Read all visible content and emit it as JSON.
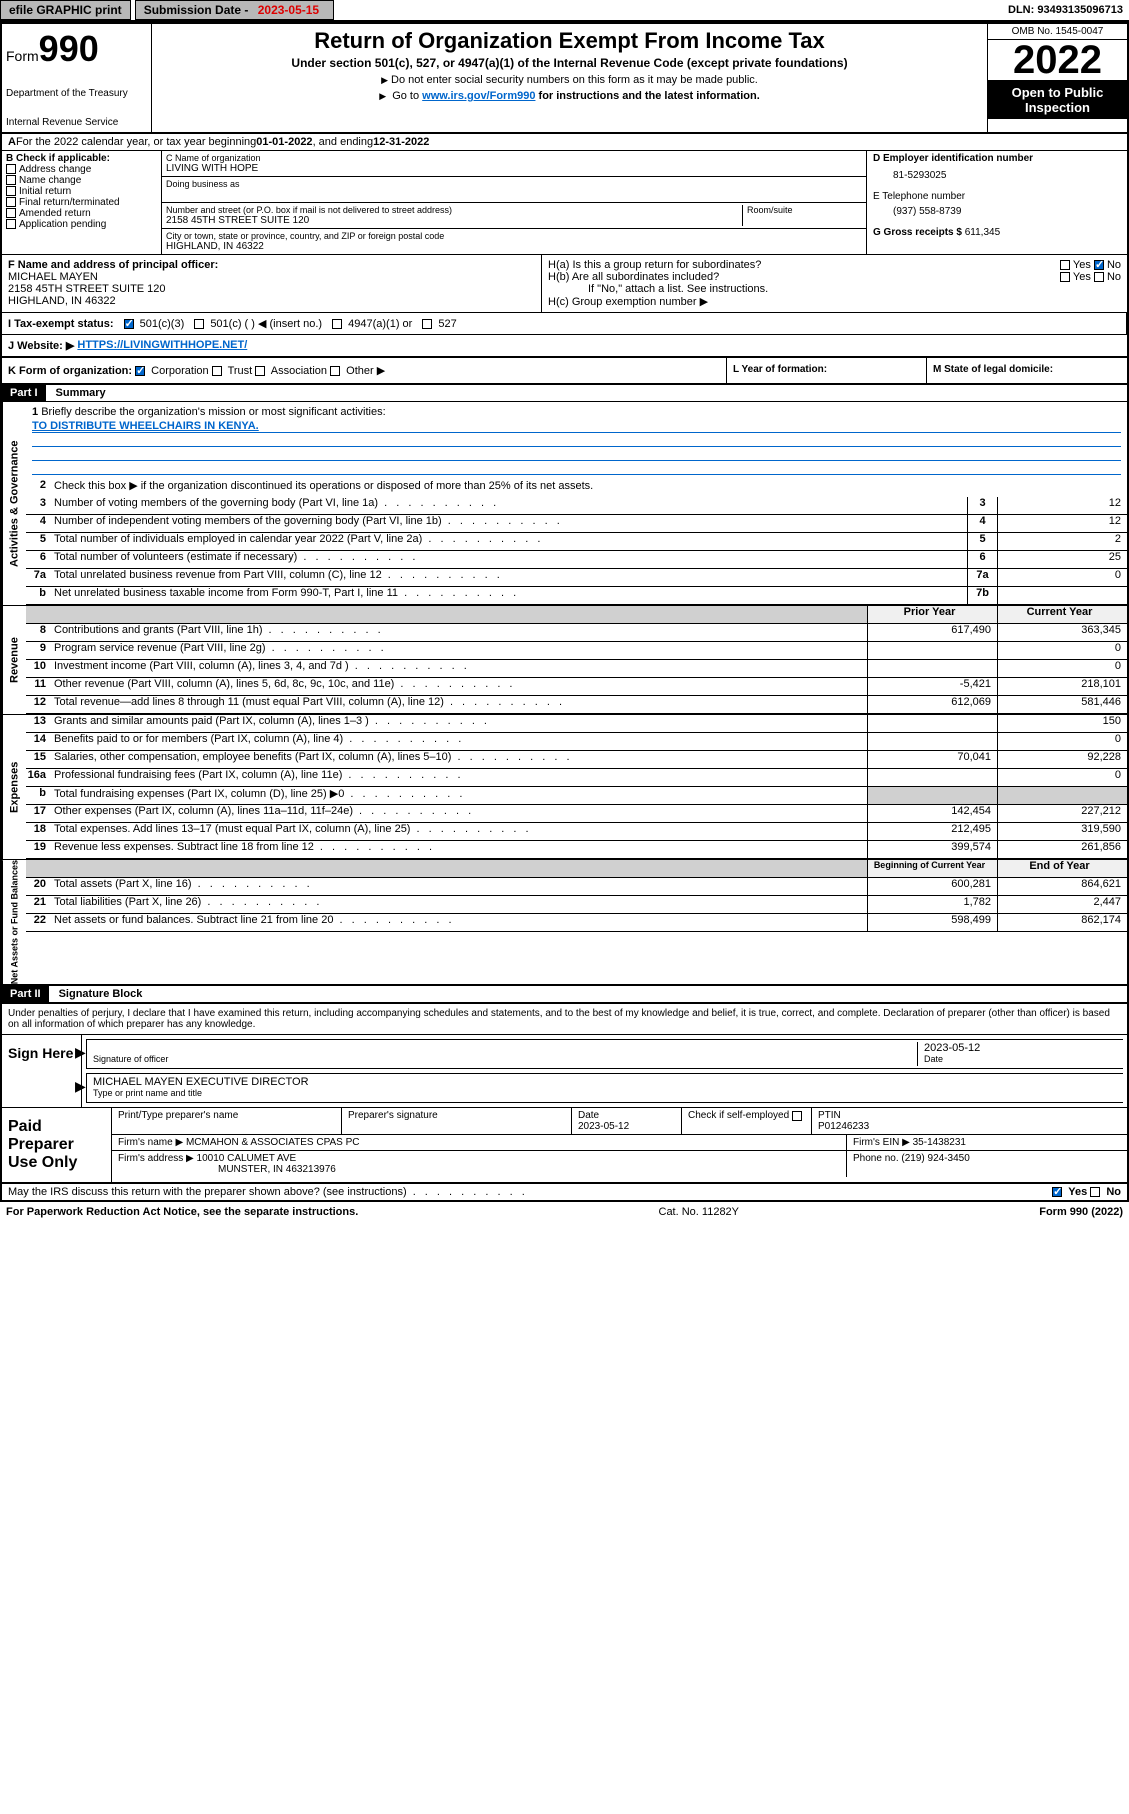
{
  "topbar": {
    "efile": "efile GRAPHIC print",
    "subdate_label": "Submission Date - ",
    "subdate": "2023-05-15",
    "dln_label": "DLN: ",
    "dln": "93493135096713"
  },
  "header": {
    "form": "Form",
    "formnum": "990",
    "dept": "Department of the Treasury",
    "irs": "Internal Revenue Service",
    "title": "Return of Organization Exempt From Income Tax",
    "sub": "Under section 501(c), 527, or 4947(a)(1) of the Internal Revenue Code (except private foundations)",
    "note1": "Do not enter social security numbers on this form as it may be made public.",
    "note2_pre": "Go to ",
    "note2_link": "www.irs.gov/Form990",
    "note2_post": " for instructions and the latest information.",
    "omb": "OMB No. 1545-0047",
    "year": "2022",
    "open1": "Open to Public",
    "open2": "Inspection"
  },
  "lineA": {
    "pre": "For the 2022 calendar year, or tax year beginning ",
    "begin": "01-01-2022",
    "mid": " , and ending ",
    "end": "12-31-2022"
  },
  "sectionB": {
    "label": "B Check if applicable:",
    "items": [
      "Address change",
      "Name change",
      "Initial return",
      "Final return/terminated",
      "Amended return",
      "Application pending"
    ]
  },
  "sectionC": {
    "name_label": "C Name of organization",
    "name": "LIVING WITH HOPE",
    "dba_label": "Doing business as",
    "street_label": "Number and street (or P.O. box if mail is not delivered to street address)",
    "room_label": "Room/suite",
    "street": "2158 45TH STREET SUITE 120",
    "city_label": "City or town, state or province, country, and ZIP or foreign postal code",
    "city": "HIGHLAND, IN  46322"
  },
  "sectionD": {
    "label": "D Employer identification number",
    "ein": "81-5293025",
    "phone_label": "E Telephone number",
    "phone": "(937) 558-8739",
    "gross_label": "G Gross receipts $ ",
    "gross": "611,345"
  },
  "officer": {
    "label": "F Name and address of principal officer:",
    "name": "MICHAEL MAYEN",
    "addr1": "2158 45TH STREET SUITE 120",
    "addr2": "HIGHLAND, IN  46322"
  },
  "H": {
    "a": "H(a)  Is this a group return for subordinates?",
    "b": "H(b)  Are all subordinates included?",
    "note": "If \"No,\" attach a list. See instructions.",
    "c": "H(c)  Group exemption number ▶",
    "yes": "Yes",
    "no": "No"
  },
  "taxStatus": {
    "label": "I  Tax-exempt status:",
    "opt1": "501(c)(3)",
    "opt2": "501(c) (  ) ◀ (insert no.)",
    "opt3": "4947(a)(1) or",
    "opt4": "527"
  },
  "website": {
    "label": "J  Website: ▶",
    "url": "HTTPS://LIVINGWITHHOPE.NET/"
  },
  "K": {
    "label": "K Form of organization:",
    "opts": [
      "Corporation",
      "Trust",
      "Association",
      "Other ▶"
    ]
  },
  "L": "L Year of formation:",
  "M": "M State of legal domicile:",
  "part1": {
    "header": "Part I",
    "title": "Summary",
    "q1": "Briefly describe the organization's mission or most significant activities:",
    "mission": "TO DISTRIBUTE WHEELCHAIRS IN KENYA.",
    "q2": "Check this box ▶          if the organization discontinued its operations or disposed of more than 25% of its net assets.",
    "lines": [
      {
        "n": "3",
        "d": "Number of voting members of the governing body (Part VI, line 1a)",
        "box": "3",
        "v2": "12"
      },
      {
        "n": "4",
        "d": "Number of independent voting members of the governing body (Part VI, line 1b)",
        "box": "4",
        "v2": "12"
      },
      {
        "n": "5",
        "d": "Total number of individuals employed in calendar year 2022 (Part V, line 2a)",
        "box": "5",
        "v2": "2"
      },
      {
        "n": "6",
        "d": "Total number of volunteers (estimate if necessary)",
        "box": "6",
        "v2": "25"
      },
      {
        "n": "7a",
        "d": "Total unrelated business revenue from Part VIII, column (C), line 12",
        "box": "7a",
        "v2": "0"
      },
      {
        "n": "b",
        "d": "Net unrelated business taxable income from Form 990-T, Part I, line 11",
        "box": "7b",
        "v2": ""
      }
    ],
    "headers": {
      "prior": "Prior Year",
      "current": "Current Year"
    },
    "revenue": [
      {
        "n": "8",
        "d": "Contributions and grants (Part VIII, line 1h)",
        "v1": "617,490",
        "v2": "363,345"
      },
      {
        "n": "9",
        "d": "Program service revenue (Part VIII, line 2g)",
        "v1": "",
        "v2": "0"
      },
      {
        "n": "10",
        "d": "Investment income (Part VIII, column (A), lines 3, 4, and 7d )",
        "v1": "",
        "v2": "0"
      },
      {
        "n": "11",
        "d": "Other revenue (Part VIII, column (A), lines 5, 6d, 8c, 9c, 10c, and 11e)",
        "v1": "-5,421",
        "v2": "218,101"
      },
      {
        "n": "12",
        "d": "Total revenue—add lines 8 through 11 (must equal Part VIII, column (A), line 12)",
        "v1": "612,069",
        "v2": "581,446"
      }
    ],
    "expenses": [
      {
        "n": "13",
        "d": "Grants and similar amounts paid (Part IX, column (A), lines 1–3 )",
        "v1": "",
        "v2": "150"
      },
      {
        "n": "14",
        "d": "Benefits paid to or for members (Part IX, column (A), line 4)",
        "v1": "",
        "v2": "0"
      },
      {
        "n": "15",
        "d": "Salaries, other compensation, employee benefits (Part IX, column (A), lines 5–10)",
        "v1": "70,041",
        "v2": "92,228"
      },
      {
        "n": "16a",
        "d": "Professional fundraising fees (Part IX, column (A), line 11e)",
        "v1": "",
        "v2": "0"
      },
      {
        "n": "b",
        "d": "Total fundraising expenses (Part IX, column (D), line 25) ▶0",
        "v1": "",
        "v2": "",
        "grey": true
      },
      {
        "n": "17",
        "d": "Other expenses (Part IX, column (A), lines 11a–11d, 11f–24e)",
        "v1": "142,454",
        "v2": "227,212"
      },
      {
        "n": "18",
        "d": "Total expenses. Add lines 13–17 (must equal Part IX, column (A), line 25)",
        "v1": "212,495",
        "v2": "319,590"
      },
      {
        "n": "19",
        "d": "Revenue less expenses. Subtract line 18 from line 12",
        "v1": "399,574",
        "v2": "261,856"
      }
    ],
    "netHeaders": {
      "begin": "Beginning of Current Year",
      "end": "End of Year"
    },
    "net": [
      {
        "n": "20",
        "d": "Total assets (Part X, line 16)",
        "v1": "600,281",
        "v2": "864,621"
      },
      {
        "n": "21",
        "d": "Total liabilities (Part X, line 26)",
        "v1": "1,782",
        "v2": "2,447"
      },
      {
        "n": "22",
        "d": "Net assets or fund balances. Subtract line 21 from line 20",
        "v1": "598,499",
        "v2": "862,174"
      }
    ],
    "vlabels": {
      "gov": "Activities & Governance",
      "rev": "Revenue",
      "exp": "Expenses",
      "net": "Net Assets or Fund Balances"
    }
  },
  "part2": {
    "header": "Part II",
    "title": "Signature Block",
    "note": "Under penalties of perjury, I declare that I have examined this return, including accompanying schedules and statements, and to the best of my knowledge and belief, it is true, correct, and complete. Declaration of preparer (other than officer) is based on all information of which preparer has any knowledge.",
    "sign": "Sign Here",
    "sigOfficer": "Signature of officer",
    "sigDate": "Date",
    "date": "2023-05-12",
    "officerName": "MICHAEL MAYEN  EXECUTIVE DIRECTOR",
    "typeName": "Type or print name and title",
    "paid": "Paid Preparer Use Only",
    "prepName": "Print/Type preparer's name",
    "prepSig": "Preparer's signature",
    "prepDateLabel": "Date",
    "prepDate": "2023-05-12",
    "checkLabel": "Check          if self-employed",
    "ptinLabel": "PTIN",
    "ptin": "P01246233",
    "firmName_label": "Firm's name      ▶",
    "firmName": "MCMAHON & ASSOCIATES CPAS PC",
    "firmEin_label": "Firm's EIN ▶",
    "firmEin": "35-1438231",
    "firmAddr_label": "Firm's address ▶",
    "firmAddr1": "10010 CALUMET AVE",
    "firmAddr2": "MUNSTER, IN  463213976",
    "firmPhone_label": "Phone no.",
    "firmPhone": "(219) 924-3450",
    "discuss": "May the IRS discuss this return with the preparer shown above? (see instructions)"
  },
  "footer": {
    "left": "For Paperwork Reduction Act Notice, see the separate instructions.",
    "mid": "Cat. No. 11282Y",
    "right": "Form 990 (2022)"
  },
  "colors": {
    "link": "#0066cc",
    "checkbox": "#0066cc"
  }
}
